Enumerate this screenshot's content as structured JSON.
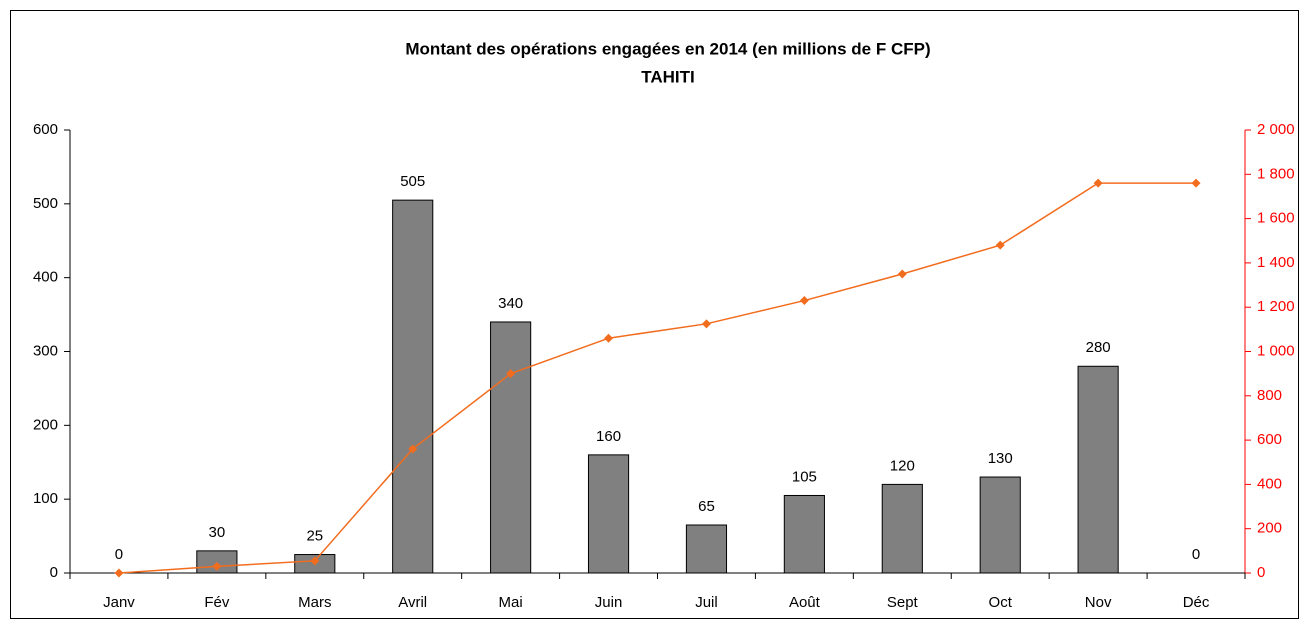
{
  "chart_data": {
    "type": "bar",
    "title": "Montant des opérations engagées en 2014 (en millions de F CFP)",
    "subtitle": "TAHITI",
    "categories": [
      "Janv",
      "Fév",
      "Mars",
      "Avril",
      "Mai",
      "Juin",
      "Juil",
      "Août",
      "Sept",
      "Oct",
      "Nov",
      "Déc"
    ],
    "series": [
      {
        "type": "bar",
        "color": "#808080",
        "values": [
          0,
          30,
          25,
          505,
          340,
          160,
          65,
          105,
          120,
          130,
          280,
          0
        ]
      },
      {
        "type": "line",
        "axis": "y2",
        "color": "#f26c1e",
        "values": [
          0,
          30,
          55,
          560,
          900,
          1060,
          1125,
          1230,
          1350,
          1480,
          1760,
          1760
        ]
      }
    ],
    "ylim": [
      0,
      600
    ],
    "yticks": [
      0,
      100,
      200,
      300,
      400,
      500,
      600
    ],
    "y2lim": [
      0,
      2000
    ],
    "y2ticks": [
      0,
      200,
      400,
      600,
      800,
      {
        "value": 1000,
        "label": "1 000"
      },
      {
        "value": 1200,
        "label": "1 200"
      },
      {
        "value": 1400,
        "label": "1 400"
      },
      {
        "value": 1600,
        "label": "1 600"
      },
      {
        "value": 1800,
        "label": "1 800"
      },
      {
        "value": 2000,
        "label": "2 000"
      }
    ],
    "y2_color": "#ff0000",
    "grid": false
  }
}
